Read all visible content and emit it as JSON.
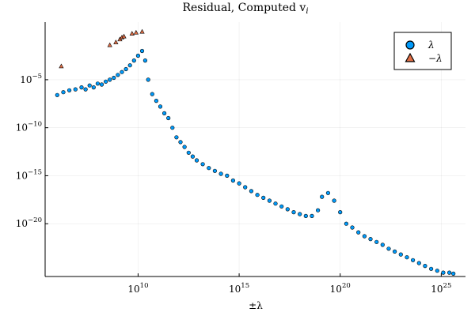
{
  "chart_data": {
    "type": "scatter",
    "title": "Residual, Computed v",
    "title_subscript": "i",
    "xlabel": "±λ",
    "ylabel": "",
    "x_scale": "log10",
    "y_scale": "log10",
    "xlim_log10": [
      5.4,
      26.2
    ],
    "ylim_log10": [
      -25.5,
      1.0
    ],
    "x_ticks": [
      {
        "base": "10",
        "exp": "10",
        "value_log10": 10
      },
      {
        "base": "10",
        "exp": "15",
        "value_log10": 15
      },
      {
        "base": "10",
        "exp": "20",
        "value_log10": 20
      },
      {
        "base": "10",
        "exp": "25",
        "value_log10": 25
      }
    ],
    "y_ticks": [
      {
        "base": "10",
        "exp": "−5",
        "value_log10": -5
      },
      {
        "base": "10",
        "exp": "−10",
        "value_log10": -10
      },
      {
        "base": "10",
        "exp": "−15",
        "value_log10": -15
      },
      {
        "base": "10",
        "exp": "−20",
        "value_log10": -20
      }
    ],
    "grid": true,
    "legend_position": "top-right",
    "series": [
      {
        "name": "λ",
        "marker": "circle",
        "color": "#009AFA",
        "points_log10": [
          [
            6.0,
            -6.6
          ],
          [
            6.3,
            -6.3
          ],
          [
            6.6,
            -6.1
          ],
          [
            6.9,
            -6.0
          ],
          [
            7.2,
            -5.8
          ],
          [
            7.4,
            -6.0
          ],
          [
            7.6,
            -5.6
          ],
          [
            7.8,
            -5.8
          ],
          [
            8.0,
            -5.4
          ],
          [
            8.2,
            -5.5
          ],
          [
            8.4,
            -5.2
          ],
          [
            8.6,
            -5.0
          ],
          [
            8.8,
            -4.8
          ],
          [
            9.0,
            -4.5
          ],
          [
            9.2,
            -4.2
          ],
          [
            9.4,
            -3.9
          ],
          [
            9.6,
            -3.5
          ],
          [
            9.8,
            -3.0
          ],
          [
            10.0,
            -2.5
          ],
          [
            10.2,
            -2.0
          ],
          [
            10.35,
            -3.0
          ],
          [
            10.5,
            -5.0
          ],
          [
            10.7,
            -6.5
          ],
          [
            10.9,
            -7.2
          ],
          [
            11.1,
            -7.8
          ],
          [
            11.3,
            -8.5
          ],
          [
            11.5,
            -9.0
          ],
          [
            11.7,
            -10.0
          ],
          [
            11.9,
            -11.0
          ],
          [
            12.1,
            -11.5
          ],
          [
            12.3,
            -12.0
          ],
          [
            12.5,
            -12.6
          ],
          [
            12.7,
            -13.0
          ],
          [
            12.9,
            -13.4
          ],
          [
            13.2,
            -13.8
          ],
          [
            13.5,
            -14.2
          ],
          [
            13.8,
            -14.5
          ],
          [
            14.1,
            -14.8
          ],
          [
            14.4,
            -15.0
          ],
          [
            14.7,
            -15.5
          ],
          [
            15.0,
            -15.8
          ],
          [
            15.3,
            -16.2
          ],
          [
            15.6,
            -16.6
          ],
          [
            15.9,
            -17.0
          ],
          [
            16.2,
            -17.3
          ],
          [
            16.5,
            -17.6
          ],
          [
            16.8,
            -17.9
          ],
          [
            17.1,
            -18.2
          ],
          [
            17.4,
            -18.5
          ],
          [
            17.7,
            -18.8
          ],
          [
            18.0,
            -19.0
          ],
          [
            18.3,
            -19.2
          ],
          [
            18.6,
            -19.2
          ],
          [
            18.9,
            -18.6
          ],
          [
            19.1,
            -17.2
          ],
          [
            19.4,
            -16.8
          ],
          [
            19.7,
            -17.6
          ],
          [
            20.0,
            -18.8
          ],
          [
            20.3,
            -20.0
          ],
          [
            20.6,
            -20.4
          ],
          [
            20.9,
            -20.9
          ],
          [
            21.2,
            -21.3
          ],
          [
            21.5,
            -21.6
          ],
          [
            21.8,
            -21.9
          ],
          [
            22.1,
            -22.2
          ],
          [
            22.4,
            -22.6
          ],
          [
            22.7,
            -22.9
          ],
          [
            23.0,
            -23.2
          ],
          [
            23.3,
            -23.5
          ],
          [
            23.6,
            -23.8
          ],
          [
            23.9,
            -24.1
          ],
          [
            24.2,
            -24.4
          ],
          [
            24.5,
            -24.7
          ],
          [
            24.8,
            -24.9
          ],
          [
            25.1,
            -25.1
          ],
          [
            25.4,
            -25.1
          ],
          [
            25.6,
            -25.2
          ]
        ]
      },
      {
        "name": "−λ",
        "marker": "triangle",
        "color": "#E26F46",
        "points_log10": [
          [
            6.2,
            -3.6
          ],
          [
            8.6,
            -1.4
          ],
          [
            8.9,
            -1.1
          ],
          [
            9.1,
            -0.8
          ],
          [
            9.2,
            -0.6
          ],
          [
            9.3,
            -0.5
          ],
          [
            9.7,
            -0.2
          ],
          [
            9.9,
            -0.1
          ],
          [
            10.2,
            0.0
          ]
        ]
      }
    ]
  }
}
